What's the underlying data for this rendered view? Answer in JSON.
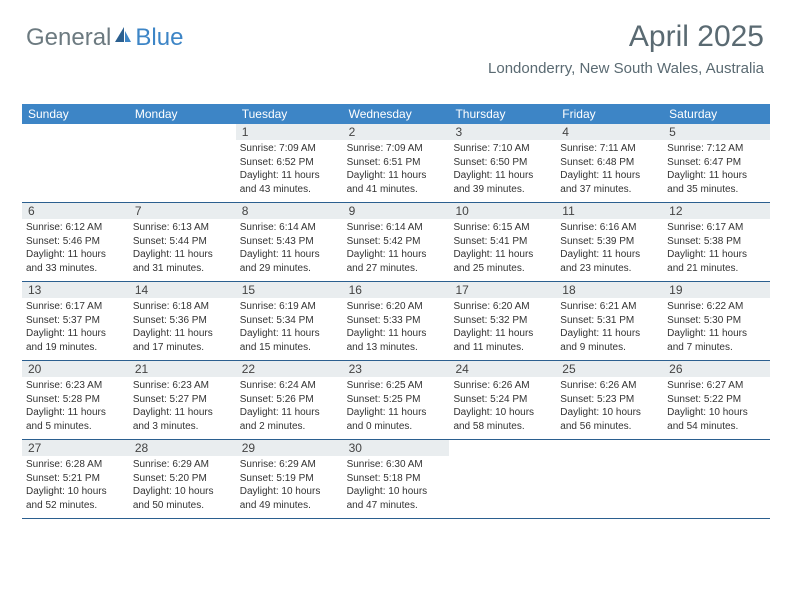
{
  "brand": {
    "part1": "General",
    "part2": "Blue"
  },
  "title": "April 2025",
  "location": "Londonderry, New South Wales, Australia",
  "colors": {
    "header_bg": "#3d85c6",
    "header_text": "#ffffff",
    "daynum_bg": "#e9edef",
    "divider": "#2b5f8f",
    "title_color": "#5a6a72",
    "body_text": "#333333"
  },
  "day_headers": [
    "Sunday",
    "Monday",
    "Tuesday",
    "Wednesday",
    "Thursday",
    "Friday",
    "Saturday"
  ],
  "weeks": [
    [
      {
        "n": "",
        "sr": "",
        "ss": "",
        "dl": ""
      },
      {
        "n": "",
        "sr": "",
        "ss": "",
        "dl": ""
      },
      {
        "n": "1",
        "sr": "Sunrise: 7:09 AM",
        "ss": "Sunset: 6:52 PM",
        "dl": "Daylight: 11 hours and 43 minutes."
      },
      {
        "n": "2",
        "sr": "Sunrise: 7:09 AM",
        "ss": "Sunset: 6:51 PM",
        "dl": "Daylight: 11 hours and 41 minutes."
      },
      {
        "n": "3",
        "sr": "Sunrise: 7:10 AM",
        "ss": "Sunset: 6:50 PM",
        "dl": "Daylight: 11 hours and 39 minutes."
      },
      {
        "n": "4",
        "sr": "Sunrise: 7:11 AM",
        "ss": "Sunset: 6:48 PM",
        "dl": "Daylight: 11 hours and 37 minutes."
      },
      {
        "n": "5",
        "sr": "Sunrise: 7:12 AM",
        "ss": "Sunset: 6:47 PM",
        "dl": "Daylight: 11 hours and 35 minutes."
      }
    ],
    [
      {
        "n": "6",
        "sr": "Sunrise: 6:12 AM",
        "ss": "Sunset: 5:46 PM",
        "dl": "Daylight: 11 hours and 33 minutes."
      },
      {
        "n": "7",
        "sr": "Sunrise: 6:13 AM",
        "ss": "Sunset: 5:44 PM",
        "dl": "Daylight: 11 hours and 31 minutes."
      },
      {
        "n": "8",
        "sr": "Sunrise: 6:14 AM",
        "ss": "Sunset: 5:43 PM",
        "dl": "Daylight: 11 hours and 29 minutes."
      },
      {
        "n": "9",
        "sr": "Sunrise: 6:14 AM",
        "ss": "Sunset: 5:42 PM",
        "dl": "Daylight: 11 hours and 27 minutes."
      },
      {
        "n": "10",
        "sr": "Sunrise: 6:15 AM",
        "ss": "Sunset: 5:41 PM",
        "dl": "Daylight: 11 hours and 25 minutes."
      },
      {
        "n": "11",
        "sr": "Sunrise: 6:16 AM",
        "ss": "Sunset: 5:39 PM",
        "dl": "Daylight: 11 hours and 23 minutes."
      },
      {
        "n": "12",
        "sr": "Sunrise: 6:17 AM",
        "ss": "Sunset: 5:38 PM",
        "dl": "Daylight: 11 hours and 21 minutes."
      }
    ],
    [
      {
        "n": "13",
        "sr": "Sunrise: 6:17 AM",
        "ss": "Sunset: 5:37 PM",
        "dl": "Daylight: 11 hours and 19 minutes."
      },
      {
        "n": "14",
        "sr": "Sunrise: 6:18 AM",
        "ss": "Sunset: 5:36 PM",
        "dl": "Daylight: 11 hours and 17 minutes."
      },
      {
        "n": "15",
        "sr": "Sunrise: 6:19 AM",
        "ss": "Sunset: 5:34 PM",
        "dl": "Daylight: 11 hours and 15 minutes."
      },
      {
        "n": "16",
        "sr": "Sunrise: 6:20 AM",
        "ss": "Sunset: 5:33 PM",
        "dl": "Daylight: 11 hours and 13 minutes."
      },
      {
        "n": "17",
        "sr": "Sunrise: 6:20 AM",
        "ss": "Sunset: 5:32 PM",
        "dl": "Daylight: 11 hours and 11 minutes."
      },
      {
        "n": "18",
        "sr": "Sunrise: 6:21 AM",
        "ss": "Sunset: 5:31 PM",
        "dl": "Daylight: 11 hours and 9 minutes."
      },
      {
        "n": "19",
        "sr": "Sunrise: 6:22 AM",
        "ss": "Sunset: 5:30 PM",
        "dl": "Daylight: 11 hours and 7 minutes."
      }
    ],
    [
      {
        "n": "20",
        "sr": "Sunrise: 6:23 AM",
        "ss": "Sunset: 5:28 PM",
        "dl": "Daylight: 11 hours and 5 minutes."
      },
      {
        "n": "21",
        "sr": "Sunrise: 6:23 AM",
        "ss": "Sunset: 5:27 PM",
        "dl": "Daylight: 11 hours and 3 minutes."
      },
      {
        "n": "22",
        "sr": "Sunrise: 6:24 AM",
        "ss": "Sunset: 5:26 PM",
        "dl": "Daylight: 11 hours and 2 minutes."
      },
      {
        "n": "23",
        "sr": "Sunrise: 6:25 AM",
        "ss": "Sunset: 5:25 PM",
        "dl": "Daylight: 11 hours and 0 minutes."
      },
      {
        "n": "24",
        "sr": "Sunrise: 6:26 AM",
        "ss": "Sunset: 5:24 PM",
        "dl": "Daylight: 10 hours and 58 minutes."
      },
      {
        "n": "25",
        "sr": "Sunrise: 6:26 AM",
        "ss": "Sunset: 5:23 PM",
        "dl": "Daylight: 10 hours and 56 minutes."
      },
      {
        "n": "26",
        "sr": "Sunrise: 6:27 AM",
        "ss": "Sunset: 5:22 PM",
        "dl": "Daylight: 10 hours and 54 minutes."
      }
    ],
    [
      {
        "n": "27",
        "sr": "Sunrise: 6:28 AM",
        "ss": "Sunset: 5:21 PM",
        "dl": "Daylight: 10 hours and 52 minutes."
      },
      {
        "n": "28",
        "sr": "Sunrise: 6:29 AM",
        "ss": "Sunset: 5:20 PM",
        "dl": "Daylight: 10 hours and 50 minutes."
      },
      {
        "n": "29",
        "sr": "Sunrise: 6:29 AM",
        "ss": "Sunset: 5:19 PM",
        "dl": "Daylight: 10 hours and 49 minutes."
      },
      {
        "n": "30",
        "sr": "Sunrise: 6:30 AM",
        "ss": "Sunset: 5:18 PM",
        "dl": "Daylight: 10 hours and 47 minutes."
      },
      {
        "n": "",
        "sr": "",
        "ss": "",
        "dl": ""
      },
      {
        "n": "",
        "sr": "",
        "ss": "",
        "dl": ""
      },
      {
        "n": "",
        "sr": "",
        "ss": "",
        "dl": ""
      }
    ]
  ]
}
